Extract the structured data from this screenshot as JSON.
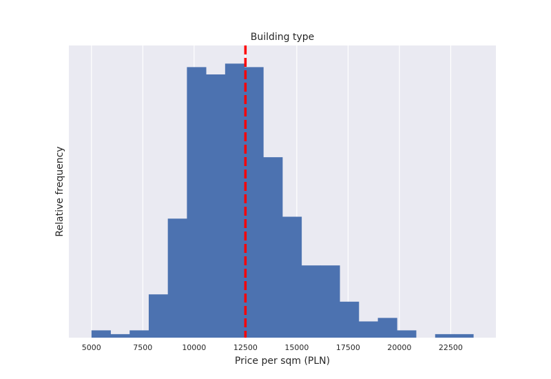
{
  "chart_data": {
    "type": "bar",
    "title": "Building type",
    "xlabel": "Price per sqm (PLN)",
    "ylabel": "Relative frequency",
    "xlim": [
      3900,
      24700
    ],
    "ylim": [
      0,
      1.08
    ],
    "x_ticks": [
      5000,
      7500,
      10000,
      12500,
      15000,
      17500,
      20000,
      22500
    ],
    "x_tick_labels": [
      "5000",
      "7500",
      "10000",
      "12500",
      "15000",
      "17500",
      "20000",
      "22500"
    ],
    "y_ticks_visible": false,
    "grid": "vertical",
    "bin_width": 930,
    "bins": [
      {
        "start": 5000,
        "value": 0.027
      },
      {
        "start": 5930,
        "value": 0.013
      },
      {
        "start": 6860,
        "value": 0.027
      },
      {
        "start": 7790,
        "value": 0.16
      },
      {
        "start": 8720,
        "value": 0.44
      },
      {
        "start": 9650,
        "value": 1.0
      },
      {
        "start": 10580,
        "value": 0.973
      },
      {
        "start": 11510,
        "value": 1.013
      },
      {
        "start": 12440,
        "value": 1.0
      },
      {
        "start": 13370,
        "value": 0.667
      },
      {
        "start": 14300,
        "value": 0.447
      },
      {
        "start": 15230,
        "value": 0.267
      },
      {
        "start": 16160,
        "value": 0.267
      },
      {
        "start": 17090,
        "value": 0.133
      },
      {
        "start": 18020,
        "value": 0.06
      },
      {
        "start": 18950,
        "value": 0.073
      },
      {
        "start": 19880,
        "value": 0.027
      },
      {
        "start": 20810,
        "value": 0
      },
      {
        "start": 21740,
        "value": 0.013
      },
      {
        "start": 22670,
        "value": 0.013
      }
    ],
    "reference_line": {
      "x": 12500,
      "color": "#ff0000",
      "style": "dashed"
    },
    "colors": {
      "bar": "#4c72b0",
      "background": "#eaeaf2",
      "grid": "#ffffff"
    }
  }
}
